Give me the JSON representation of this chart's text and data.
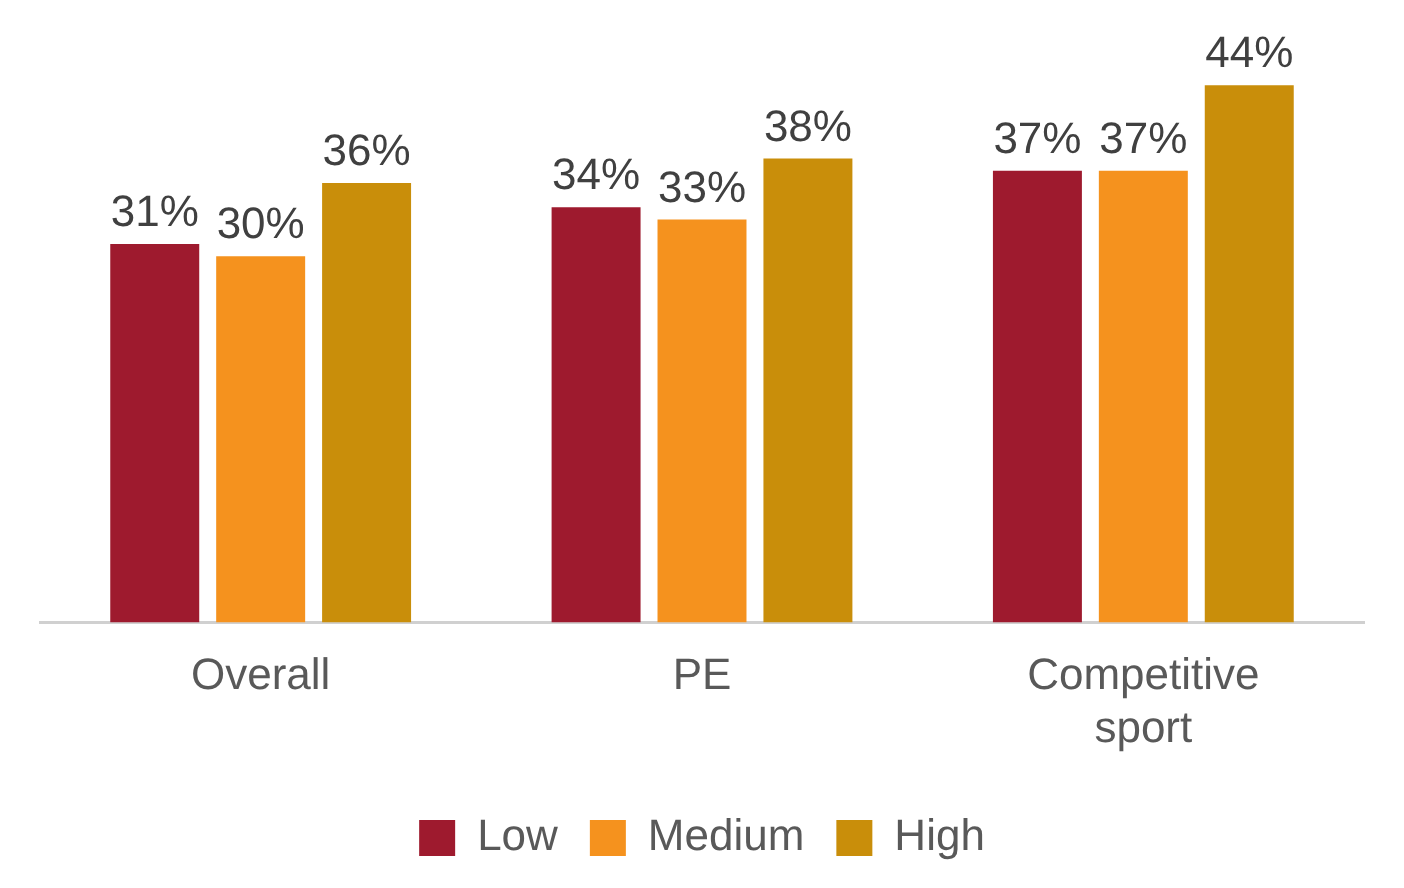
{
  "chart_data": {
    "type": "bar",
    "categories": [
      "Overall",
      "PE",
      "Competitive sport"
    ],
    "series": [
      {
        "name": "Low",
        "color": "#9e1a2e",
        "values": [
          31,
          34,
          37
        ],
        "value_labels": [
          "31%",
          "34%",
          "37%"
        ]
      },
      {
        "name": "Medium",
        "color": "#f5921e",
        "values": [
          30,
          33,
          37
        ],
        "value_labels": [
          "30%",
          "33%",
          "37%"
        ]
      },
      {
        "name": "High",
        "color": "#c98e0a",
        "values": [
          36,
          38,
          44
        ],
        "value_labels": [
          "36%",
          "38%",
          "44%"
        ]
      }
    ],
    "legend": "bottom",
    "grid": false
  }
}
